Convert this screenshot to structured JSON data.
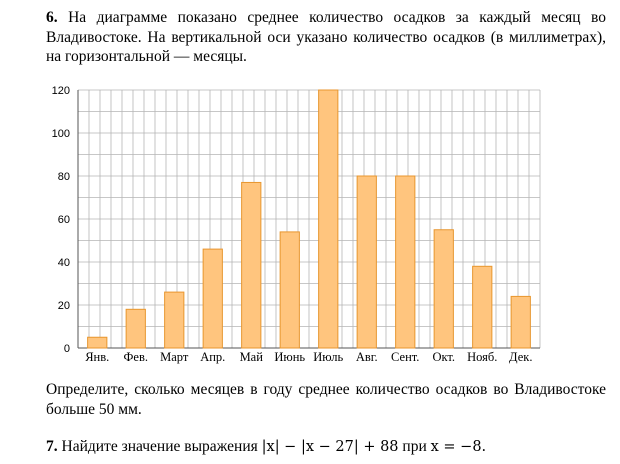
{
  "problem6": {
    "number": "6.",
    "text": "На диаграмме показано среднее количество осадков за каждый месяц во Владивостоке. На вертикальной оси указано количество осадков (в миллиметрах), на горизонтальной — месяцы.",
    "question": "Определите, сколько месяцев в году среднее количество осадков во Владивостоке больше 50 мм."
  },
  "problem7": {
    "number": "7.",
    "text_before": "Найдите значение выражения",
    "expression": "|x| − |x − 27| + 88",
    "text_middle": "при",
    "condition": "x = −8."
  },
  "chart_data": {
    "type": "bar",
    "categories": [
      "Янв.",
      "Фев.",
      "Март",
      "Апр.",
      "Май",
      "Июнь",
      "Июль",
      "Авг.",
      "Сент.",
      "Окт.",
      "Нояб.",
      "Дек."
    ],
    "values": [
      5,
      18,
      26,
      46,
      77,
      54,
      120,
      80,
      80,
      55,
      38,
      24
    ],
    "yticks": [
      "0",
      "20",
      "40",
      "60",
      "80",
      "100",
      "120"
    ],
    "ylim": [
      0,
      120
    ],
    "grid": true,
    "colors": {
      "bar_fill": "#ffc57e",
      "bar_stroke": "#e8962f",
      "grid": "#b5b5b5",
      "axis": "#555555"
    }
  }
}
